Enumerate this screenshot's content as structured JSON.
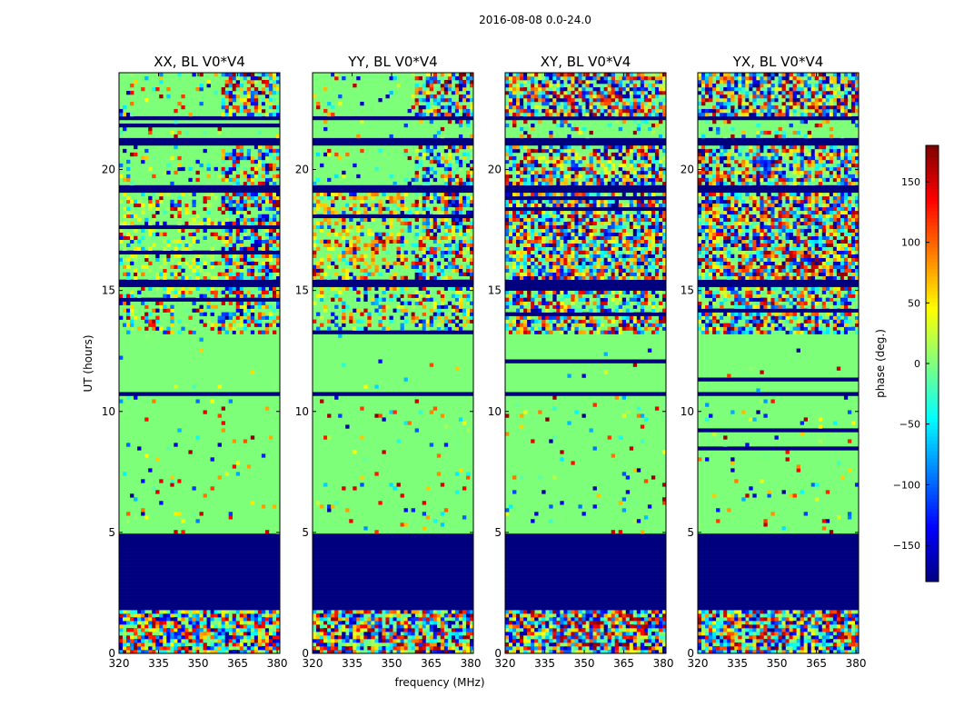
{
  "chart_data": {
    "type": "heatmap",
    "title": "2016-08-08 0.0-24.0",
    "xlabel": "frequency (MHz)",
    "ylabel": "UT (hours)",
    "colorbar_label": "phase (deg.)",
    "colormap": "jet",
    "xlim": [
      320,
      381
    ],
    "ylim": [
      0,
      24
    ],
    "clim": [
      -180,
      180
    ],
    "x_ticks": [
      "320",
      "335",
      "350",
      "365",
      "380"
    ],
    "y_ticks": [
      "0",
      "5",
      "10",
      "15",
      "20"
    ],
    "colorbar_ticks": [
      "150",
      "100",
      "50",
      "0",
      "−50",
      "−100",
      "−150"
    ],
    "panels": [
      {
        "name": "XX, BL V0*V4"
      },
      {
        "name": "YY, BL V0*V4"
      },
      {
        "name": "XY, BL V0*V4"
      },
      {
        "name": "YX, BL V0*V4"
      }
    ],
    "flagged_intervals_hours": [
      [
        1.8,
        4.9
      ],
      [
        10.65,
        10.85
      ],
      [
        15.2,
        15.4
      ],
      [
        19.0,
        19.3
      ],
      [
        21.0,
        21.35
      ],
      [
        22.0,
        22.2
      ]
    ],
    "colors": {
      "flagged": "#00007f",
      "zero_phase": "#7dff7a",
      "frame": "#000000"
    }
  }
}
